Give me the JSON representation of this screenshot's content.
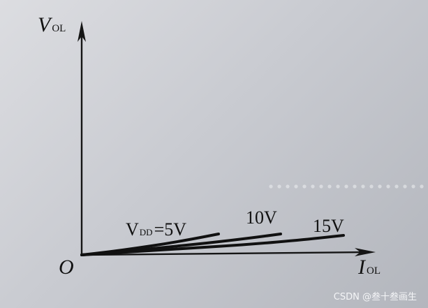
{
  "chart_data": {
    "type": "line",
    "xlabel": {
      "main": "I",
      "sub": "OL"
    },
    "ylabel": {
      "main": "V",
      "sub": "OL"
    },
    "origin_label": "O",
    "grid": false,
    "series": [
      {
        "name": "VDD=5V",
        "label_main": "V",
        "label_sub": "DD",
        "label_rest": "=5V",
        "x": [
          0,
          40,
          80,
          120,
          160,
          196
        ],
        "y": [
          0,
          4.5,
          10,
          16,
          23,
          30
        ]
      },
      {
        "name": "10V",
        "label": "10V",
        "x": [
          0,
          60,
          120,
          180,
          240,
          285
        ],
        "y": [
          0,
          5,
          11,
          17,
          24,
          30
        ]
      },
      {
        "name": "15V",
        "label": "15V",
        "x": [
          0,
          80,
          160,
          240,
          320,
          375
        ],
        "y": [
          0,
          5,
          10,
          15,
          22,
          28
        ]
      }
    ],
    "xlim": [
      0,
      420
    ],
    "ylim": [
      0,
      330
    ]
  },
  "watermark": "CSDN @叁十叁画生"
}
